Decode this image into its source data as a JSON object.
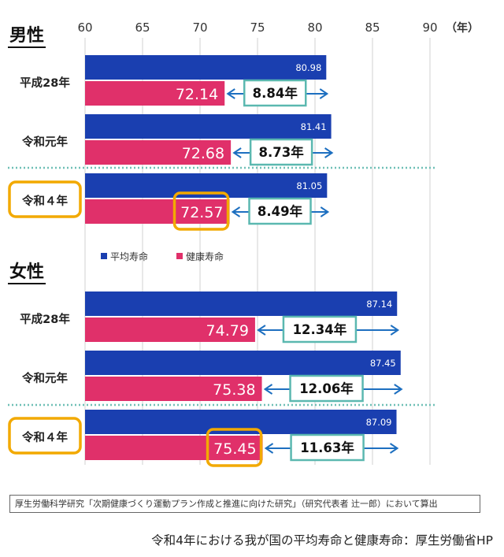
{
  "chart_data": {
    "type": "bar",
    "orientation": "horizontal",
    "x_axis": {
      "ticks": [
        "60",
        "65",
        "70",
        "75",
        "80",
        "85",
        "90"
      ],
      "unit": "（年）",
      "range": [
        60,
        90
      ]
    },
    "legend": {
      "position": "middle",
      "items": [
        {
          "name": "平均寿命",
          "color": "#1a3fb0"
        },
        {
          "name": "健康寿命",
          "color": "#e0306a"
        }
      ]
    },
    "colors": {
      "avg": "#1a3fb0",
      "health": "#e0306a",
      "gap_border": "#5bb8b0",
      "arrow": "#1d6fc0",
      "highlight": "#f2a900",
      "divider": "#6fbfb6",
      "grid": "#d0d0d0"
    },
    "groups": [
      {
        "title": "男性",
        "rows": [
          {
            "label": "平成28年",
            "avg": 80.98,
            "avg_label": "80.98",
            "health": 72.14,
            "health_label": "72.14",
            "gap_label": "8.84年",
            "highlight": false
          },
          {
            "label": "令和元年",
            "avg": 81.41,
            "avg_label": "81.41",
            "health": 72.68,
            "health_label": "72.68",
            "gap_label": "8.73年",
            "highlight": false
          },
          {
            "label": "令和４年",
            "avg": 81.05,
            "avg_label": "81.05",
            "health": 72.57,
            "health_label": "72.57",
            "gap_label": "8.49年",
            "highlight": true
          }
        ]
      },
      {
        "title": "女性",
        "rows": [
          {
            "label": "平成28年",
            "avg": 87.14,
            "avg_label": "87.14",
            "health": 74.79,
            "health_label": "74.79",
            "gap_label": "12.34年",
            "highlight": false
          },
          {
            "label": "令和元年",
            "avg": 87.45,
            "avg_label": "87.45",
            "health": 75.38,
            "health_label": "75.38",
            "gap_label": "12.06年",
            "highlight": false
          },
          {
            "label": "令和４年",
            "avg": 87.09,
            "avg_label": "87.09",
            "health": 75.45,
            "health_label": "75.45",
            "gap_label": "11.63年",
            "highlight": true
          }
        ]
      }
    ]
  },
  "note": "厚生労働科学研究「次期健康づくり運動プラン作成と推進に向けた研究」（研究代表者 辻一郎）において算出",
  "caption": "令和4年における我が国の平均寿命と健康寿命：厚生労働省HP"
}
